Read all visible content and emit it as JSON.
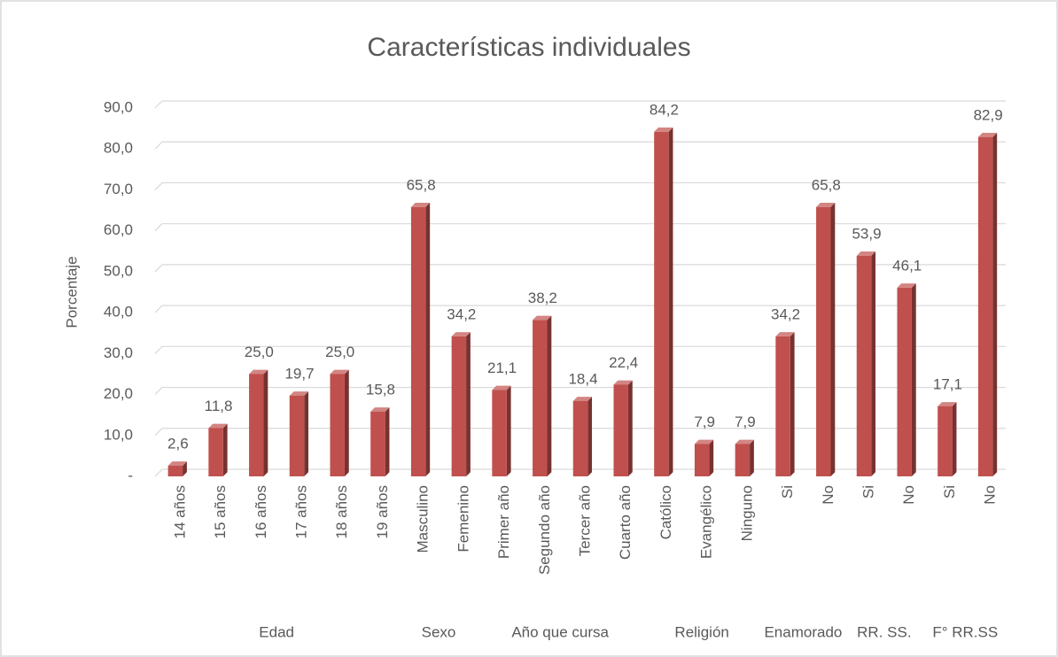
{
  "chart_data": {
    "type": "bar",
    "title": "Características individuales",
    "y_label": "Porcentaje",
    "color": "#c0504d",
    "ylim": [
      0,
      90
    ],
    "yticks": [
      {
        "value": 0,
        "label": "-"
      },
      {
        "value": 10,
        "label": "10,0"
      },
      {
        "value": 20,
        "label": "20,0"
      },
      {
        "value": 30,
        "label": "30,0"
      },
      {
        "value": 40,
        "label": "40,0"
      },
      {
        "value": 50,
        "label": "50,0"
      },
      {
        "value": 60,
        "label": "60,0"
      },
      {
        "value": 70,
        "label": "70,0"
      },
      {
        "value": 80,
        "label": "80,0"
      },
      {
        "value": 90,
        "label": "90,0"
      }
    ],
    "grid": true,
    "groups": [
      {
        "name": "Edad",
        "categories": [
          "14 años",
          "15 años",
          "16 años",
          "17 años",
          "18  años",
          "19 años"
        ],
        "values": [
          2.6,
          11.8,
          25.0,
          19.7,
          25.0,
          15.8
        ],
        "value_labels": [
          "2,6",
          "11,8",
          "25,0",
          "19,7",
          "25,0",
          "15,8"
        ]
      },
      {
        "name": "Sexo",
        "categories": [
          "Masculino",
          "Femenino"
        ],
        "values": [
          65.8,
          34.2
        ],
        "value_labels": [
          "65,8",
          "34,2"
        ]
      },
      {
        "name": "Año que cursa",
        "categories": [
          "Primer año",
          "Segundo año",
          "Tercer año",
          "Cuarto año"
        ],
        "values": [
          21.1,
          38.2,
          18.4,
          22.4
        ],
        "value_labels": [
          "21,1",
          "38,2",
          "18,4",
          "22,4"
        ]
      },
      {
        "name": "Religión",
        "categories": [
          "Católico",
          "Evangélico",
          "Ninguno"
        ],
        "values": [
          84.2,
          7.9,
          7.9
        ],
        "value_labels": [
          "84,2",
          "7,9",
          "7,9"
        ]
      },
      {
        "name": "Enamorado",
        "categories": [
          "Si",
          "No"
        ],
        "values": [
          34.2,
          65.8
        ],
        "value_labels": [
          "34,2",
          "65,8"
        ]
      },
      {
        "name": "RR. SS.",
        "categories": [
          "Si",
          "No"
        ],
        "values": [
          53.9,
          46.1
        ],
        "value_labels": [
          "53,9",
          "46,1"
        ]
      },
      {
        "name": "F° RR.SS",
        "categories": [
          "Si",
          "No"
        ],
        "values": [
          17.1,
          82.9
        ],
        "value_labels": [
          "17,1",
          "82,9"
        ]
      }
    ]
  }
}
